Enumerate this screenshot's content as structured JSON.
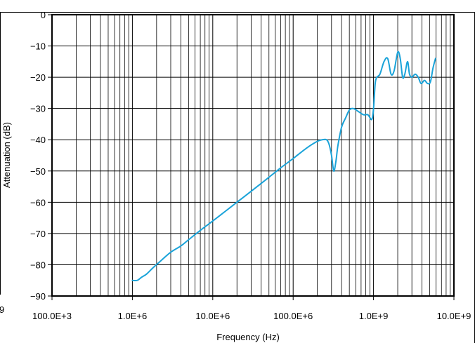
{
  "chart_data": {
    "type": "line",
    "title": "",
    "xlabel": "Frequency (Hz)",
    "ylabel": "Attenuation (dB)",
    "x_scale": "log",
    "xlim": [
      100000,
      10000000000
    ],
    "ylim": [
      -90,
      0
    ],
    "x_tick_values": [
      100000,
      1000000,
      10000000,
      100000000,
      1000000000,
      10000000000
    ],
    "x_tick_labels": [
      "100.0E+3",
      "1.0E+6",
      "10.0E+6",
      "100.0E+6",
      "1.0E+9",
      "10.0E+9"
    ],
    "y_tick_values": [
      0,
      -10,
      -20,
      -30,
      -40,
      -50,
      -60,
      -70,
      -80,
      -90
    ],
    "y_tick_labels": [
      "0",
      "−10",
      "−20",
      "−30",
      "−40",
      "−50",
      "−60",
      "−70",
      "−80",
      "−90"
    ],
    "edge_fragment_text": "9",
    "grid": true,
    "line_color": "#1aa3d9",
    "series": [
      {
        "x": [
          1000000,
          1150000,
          1300000,
          1500000,
          1800000,
          2200000,
          3000000,
          4000000,
          5000000,
          7000000,
          10000000,
          15000000,
          20000000,
          30000000,
          50000000,
          70000000,
          100000000,
          150000000,
          200000000,
          230000000,
          260000000,
          280000000,
          300000000,
          320000000,
          340000000,
          360000000,
          400000000,
          450000000,
          500000000,
          560000000,
          650000000,
          750000000,
          850000000,
          950000000,
          1000000000,
          1050000000,
          1100000000,
          1200000000,
          1350000000,
          1500000000,
          1650000000,
          1800000000,
          2000000000,
          2150000000,
          2300000000,
          2450000000,
          2650000000,
          2800000000,
          3000000000,
          3300000000,
          3600000000,
          3900000000,
          4300000000,
          4700000000,
          5100000000,
          5500000000,
          5900000000
        ],
        "values": [
          -85,
          -85,
          -84,
          -83,
          -81,
          -79,
          -76,
          -74,
          -72,
          -69,
          -66,
          -62.5,
          -60,
          -56.5,
          -52,
          -49,
          -46,
          -42.5,
          -40.5,
          -40,
          -40,
          -41.5,
          -45,
          -50,
          -47,
          -42,
          -36,
          -33,
          -30.5,
          -30,
          -31,
          -32,
          -32,
          -33.5,
          -30,
          -22,
          -20,
          -19,
          -15,
          -14,
          -19,
          -18,
          -12,
          -14,
          -20,
          -19,
          -15,
          -19,
          -20,
          -19,
          -20,
          -22,
          -21,
          -22,
          -21.5,
          -17,
          -14
        ]
      }
    ]
  }
}
